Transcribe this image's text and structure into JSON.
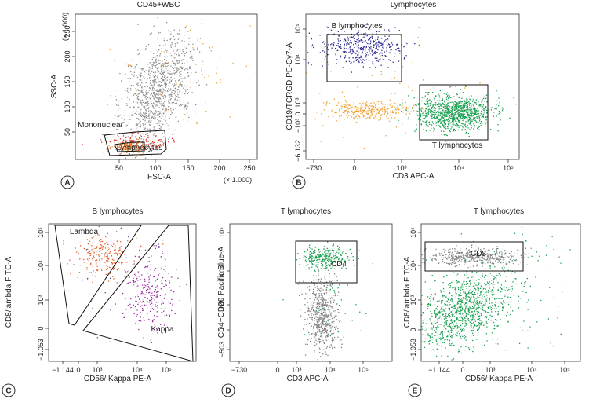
{
  "panels": [
    {
      "letter": "A",
      "title": "CD45+WBC",
      "x_axis": {
        "label": "FSC-A",
        "ticks": [
          "50",
          "100",
          "150",
          "200",
          "250"
        ],
        "scale_note": "(× 1.000)"
      },
      "y_axis": {
        "label": "SSC-A",
        "ticks": [
          "50",
          "100",
          "150",
          "200",
          "250"
        ],
        "scale_note": "(× 1.000)"
      },
      "gates": [
        "Mononuclear",
        "Lymphocytes"
      ]
    },
    {
      "letter": "B",
      "title": "Lymphocytes",
      "x_axis": {
        "label": "CD3 APC-A",
        "ticks": [
          "−730",
          "0",
          "10³",
          "10⁴",
          "10⁵"
        ]
      },
      "y_axis": {
        "label": "CD19/TCRGD PE-Cy7-A",
        "ticks": [
          "10⁵",
          "10⁴",
          "10³",
          "0",
          "−10³",
          "−6.132"
        ]
      },
      "gates": [
        "B lymphocytes",
        "T lymphocytes"
      ]
    },
    {
      "letter": "C",
      "title": "B lymphocytes",
      "x_axis": {
        "label": "CD56/ Kappa PE-A",
        "ticks": [
          "−1.144",
          "0",
          "10³",
          "10⁴",
          "10⁵"
        ]
      },
      "y_axis": {
        "label": "CD8/lambda FITC-A",
        "ticks": [
          "10⁵",
          "10⁴",
          "10³",
          "0",
          "−1.053"
        ]
      },
      "gates": [
        "Lambda",
        "Kappa"
      ]
    },
    {
      "letter": "D",
      "title": "T lymphocytes",
      "x_axis": {
        "label": "CD3 APC-A",
        "ticks": [
          "−730",
          "0",
          "10³",
          "10⁴",
          "10⁵"
        ]
      },
      "y_axis": {
        "label": "CD4+CD20 Pacific Blue-A",
        "ticks": [
          "10⁵",
          "10⁴",
          "10³",
          "0",
          "−503"
        ]
      },
      "gates": [
        "CD4"
      ]
    },
    {
      "letter": "E",
      "title": "T lymphocytes",
      "x_axis": {
        "label": "CD56/ Kappa PE-A",
        "ticks": [
          "−1.144",
          "0",
          "10³",
          "10⁴",
          "10⁵"
        ]
      },
      "y_axis": {
        "label": "CD8/lambda FITC-A",
        "ticks": [
          "10⁵",
          "10⁴",
          "10³",
          "0",
          "−1.053"
        ]
      },
      "gates": [
        "CD8"
      ]
    }
  ]
}
